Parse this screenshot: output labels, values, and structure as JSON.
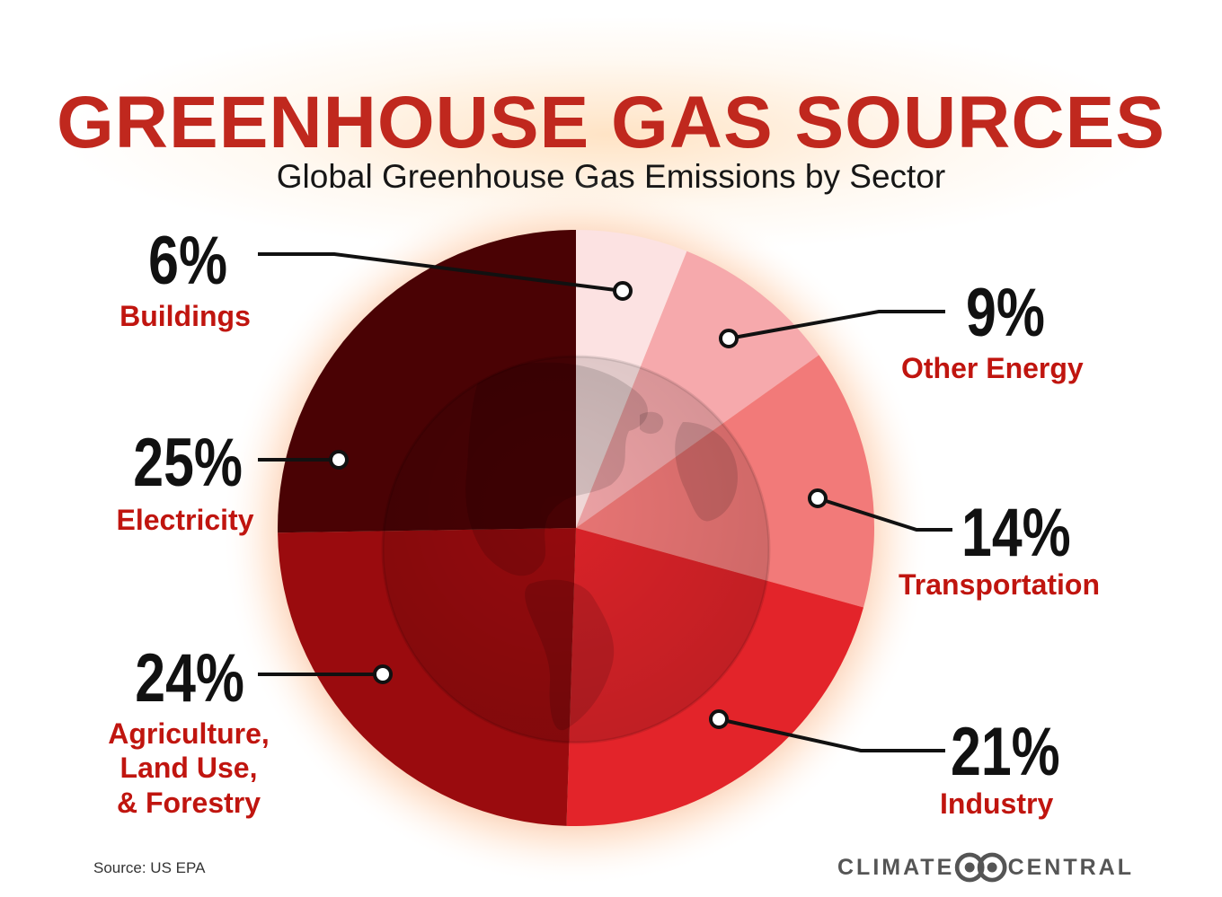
{
  "title": "GREENHOUSE GAS SOURCES",
  "subtitle": "Global Greenhouse Gas Emissions by Sector",
  "chart_data": {
    "type": "pie",
    "title": "GREENHOUSE GAS SOURCES",
    "subtitle": "Global Greenhouse Gas Emissions by Sector",
    "slices": [
      {
        "label": "Buildings",
        "value": 6,
        "value_label": "6%",
        "color": "#fce2e2"
      },
      {
        "label": "Other Energy",
        "value": 9,
        "value_label": "9%",
        "color": "#f6a9ac"
      },
      {
        "label": "Transportation",
        "value": 14,
        "value_label": "14%",
        "color": "#f27a79"
      },
      {
        "label": "Industry",
        "value": 21,
        "value_label": "21%",
        "color": "#e3242a"
      },
      {
        "label": "Agriculture, Land Use, & Forestry",
        "value": 24,
        "value_label": "24%",
        "color": "#9a0b0e"
      },
      {
        "label": "Electricity",
        "value": 25,
        "value_label": "25%",
        "color": "#4a0204"
      }
    ]
  },
  "labels": {
    "buildings": {
      "pct": "6%",
      "name": "Buildings"
    },
    "other_energy": {
      "pct": "9%",
      "name": "Other Energy"
    },
    "transportation": {
      "pct": "14%",
      "name": "Transportation"
    },
    "industry": {
      "pct": "21%",
      "name": "Industry"
    },
    "agriculture": {
      "pct": "24%",
      "name_lines": [
        "Agriculture,",
        "Land Use,",
        "& Forestry"
      ]
    },
    "electricity": {
      "pct": "25%",
      "name": "Electricity"
    }
  },
  "source": "Source: US EPA",
  "brand": {
    "left": "CLIMATE",
    "right": "CENTRAL",
    "logo_icon": "climate-central-logo-icon"
  },
  "colors": {
    "title": "#c0281e",
    "category": "#c0150f"
  }
}
